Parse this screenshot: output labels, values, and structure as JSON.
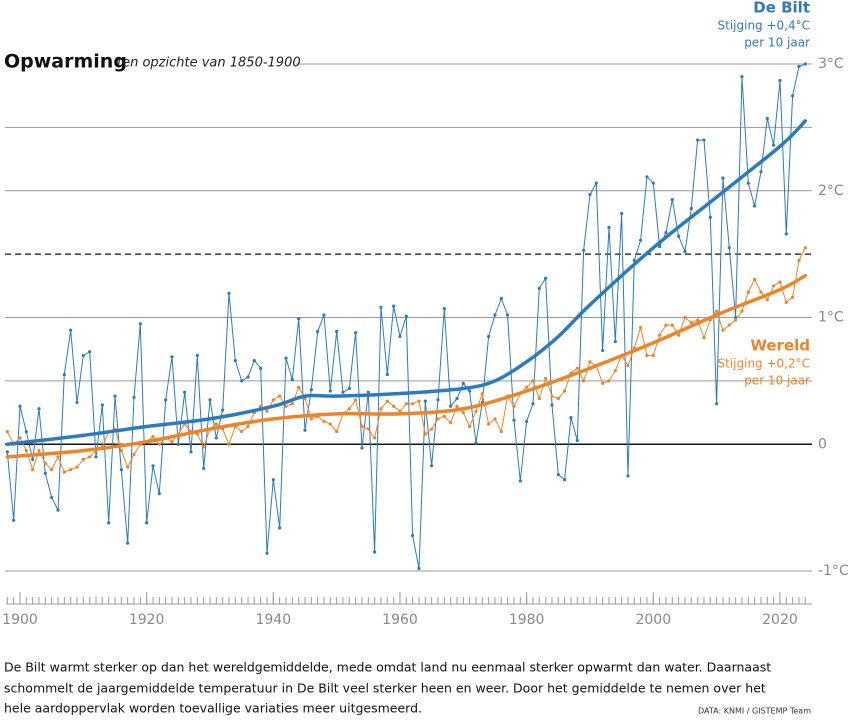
{
  "chart_data": {
    "type": "line",
    "title": "Opwarming",
    "subtitle": "ten opzichte van 1850-1900",
    "caption": [
      "De Bilt warmt sterker op dan het wereldgemiddelde, mede omdat land nu eenmaal sterker opwarmt dan water. Daarnaast",
      "schommelt de jaargemiddelde temperatuur in De Bilt veel sterker heen en weer. Door het gemiddelde te nemen over het",
      "hele aardoppervlak worden toevallige variaties meer uitgesmeerd."
    ],
    "source": "DATA: KNMI / GISTEMP Team",
    "xlim": [
      1898,
      2025
    ],
    "ylim": [
      -1,
      3
    ],
    "xticks": [
      1900,
      1920,
      1940,
      1960,
      1980,
      2000,
      2020
    ],
    "yticks": [
      {
        "value": -1,
        "label": "-1°C"
      },
      0,
      {
        "value": 1,
        "label": "1°C"
      },
      {
        "value": 2,
        "label": "2°C"
      },
      {
        "value": 3,
        "label": "3°C"
      }
    ],
    "ygrid_minor": [
      0.5,
      2.5
    ],
    "reference_line": 1.5,
    "x": [
      1898,
      1899,
      1900,
      1901,
      1902,
      1903,
      1904,
      1905,
      1906,
      1907,
      1908,
      1909,
      1910,
      1911,
      1912,
      1913,
      1914,
      1915,
      1916,
      1917,
      1918,
      1919,
      1920,
      1921,
      1922,
      1923,
      1924,
      1925,
      1926,
      1927,
      1928,
      1929,
      1930,
      1931,
      1932,
      1933,
      1934,
      1935,
      1936,
      1937,
      1938,
      1939,
      1940,
      1941,
      1942,
      1943,
      1944,
      1945,
      1946,
      1947,
      1948,
      1949,
      1950,
      1951,
      1952,
      1953,
      1954,
      1955,
      1956,
      1957,
      1958,
      1959,
      1960,
      1961,
      1962,
      1963,
      1964,
      1965,
      1966,
      1967,
      1968,
      1969,
      1970,
      1971,
      1972,
      1973,
      1974,
      1975,
      1976,
      1977,
      1978,
      1979,
      1980,
      1981,
      1982,
      1983,
      1984,
      1985,
      1986,
      1987,
      1988,
      1989,
      1990,
      1991,
      1992,
      1993,
      1994,
      1995,
      1996,
      1997,
      1998,
      1999,
      2000,
      2001,
      2002,
      2003,
      2004,
      2005,
      2006,
      2007,
      2008,
      2009,
      2010,
      2011,
      2012,
      2013,
      2014,
      2015,
      2016,
      2017,
      2018,
      2019,
      2020,
      2021,
      2022,
      2023,
      2024
    ],
    "series": [
      {
        "name": "De Bilt",
        "color": "#2b7bbd",
        "note": [
          "Stijging +0,4°C",
          "per 10 jaar"
        ],
        "values": [
          -0.06,
          -0.6,
          0.3,
          0.1,
          -0.12,
          0.28,
          -0.23,
          -0.42,
          -0.52,
          0.55,
          0.9,
          0.33,
          0.7,
          0.73,
          -0.1,
          0.31,
          -0.62,
          0.38,
          -0.2,
          -0.78,
          0.37,
          0.95,
          -0.62,
          -0.17,
          -0.39,
          0.35,
          0.69,
          0,
          0.41,
          -0.06,
          0.7,
          -0.19,
          0.35,
          0.05,
          0.27,
          1.19,
          0.66,
          0.5,
          0.53,
          0.66,
          0.6,
          -0.86,
          -0.28,
          -0.66,
          0.68,
          0.51,
          0.99,
          0.11,
          0.43,
          0.89,
          1.02,
          0.42,
          0.89,
          0.41,
          0.44,
          0.88,
          -0.03,
          0.41,
          -0.85,
          1.08,
          0.55,
          1.09,
          0.85,
          1.01,
          -0.72,
          -0.98,
          0.34,
          -0.17,
          0.35,
          1.07,
          0.3,
          0.36,
          0.48,
          0.42,
          0.01,
          0.33,
          0.85,
          1.02,
          1.15,
          1.02,
          0.19,
          -0.29,
          0.18,
          0.32,
          1.23,
          1.31,
          0.31,
          -0.24,
          -0.28,
          0.21,
          0.03,
          1.53,
          1.97,
          2.06,
          0.74,
          1.71,
          0.81,
          1.82,
          -0.25,
          1.45,
          1.61,
          2.11,
          2.06,
          1.56,
          1.67,
          1.93,
          1.64,
          1.52,
          1.86,
          2.4,
          2.4,
          1.79,
          0.32,
          2.1,
          1.55,
          1.0,
          2.9,
          2.06,
          1.88,
          2.15,
          2.57,
          2.36,
          2.87,
          1.66,
          2.75,
          2.98,
          3.0
        ],
        "trend": {
          "x": [
            1898,
            1910,
            1920,
            1930,
            1940,
            1945,
            1950,
            1960,
            1970,
            1975,
            1980,
            1985,
            1990,
            2000,
            2010,
            2020,
            2024
          ],
          "values": [
            0.0,
            0.07,
            0.14,
            0.2,
            0.3,
            0.38,
            0.38,
            0.4,
            0.44,
            0.5,
            0.65,
            0.85,
            1.1,
            1.55,
            1.95,
            2.35,
            2.55
          ]
        }
      },
      {
        "name": "Wereld",
        "color": "#ee8425",
        "note": [
          "Stijging +0,2°C",
          "per 10 jaar"
        ],
        "values": [
          0.1,
          0,
          0.05,
          -0.05,
          -0.2,
          -0.05,
          -0.15,
          -0.2,
          -0.1,
          -0.22,
          -0.2,
          -0.18,
          -0.12,
          -0.1,
          -0.05,
          -0.02,
          0.1,
          0.12,
          -0.05,
          -0.18,
          -0.08,
          0,
          0.02,
          0.06,
          0,
          0.05,
          0.02,
          0.08,
          0.16,
          0.1,
          0.08,
          -0.02,
          0.12,
          0.16,
          0.12,
          0,
          0.14,
          0.1,
          0.14,
          0.25,
          0.3,
          0.26,
          0.35,
          0.38,
          0.3,
          0.32,
          0.45,
          0.36,
          0.2,
          0.22,
          0.18,
          0.16,
          0.1,
          0.24,
          0.28,
          0.35,
          0.14,
          0.12,
          0.05,
          0.28,
          0.34,
          0.3,
          0.26,
          0.32,
          0.32,
          0.34,
          0.08,
          0.12,
          0.2,
          0.22,
          0.17,
          0.3,
          0.25,
          0.14,
          0.26,
          0.4,
          0.16,
          0.2,
          0.1,
          0.38,
          0.3,
          0.4,
          0.45,
          0.5,
          0.36,
          0.52,
          0.38,
          0.36,
          0.42,
          0.56,
          0.6,
          0.5,
          0.65,
          0.62,
          0.48,
          0.5,
          0.58,
          0.7,
          0.62,
          0.76,
          0.92,
          0.7,
          0.7,
          0.86,
          0.94,
          0.94,
          0.86,
          1.0,
          0.96,
          0.98,
          0.84,
          0.98,
          1.05,
          0.9,
          0.94,
          0.98,
          1.05,
          1.2,
          1.3,
          1.2,
          1.14,
          1.25,
          1.28,
          1.12,
          1.16,
          1.45,
          1.55
        ],
        "trend": {
          "x": [
            1898,
            1910,
            1920,
            1930,
            1940,
            1950,
            1960,
            1970,
            1980,
            1990,
            2000,
            2010,
            2020,
            2024
          ],
          "values": [
            -0.1,
            -0.05,
            0.02,
            0.12,
            0.2,
            0.24,
            0.24,
            0.28,
            0.42,
            0.6,
            0.8,
            1.02,
            1.22,
            1.33
          ]
        }
      }
    ]
  }
}
